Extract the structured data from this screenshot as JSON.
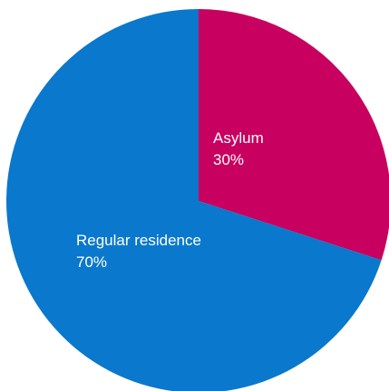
{
  "chart_data": {
    "type": "pie",
    "title": "",
    "slices": [
      {
        "label": "Asylum",
        "value": 30,
        "value_label": "30%",
        "color": "#C8005F"
      },
      {
        "label": "Regular residence",
        "value": 70,
        "value_label": "70%",
        "color": "#0A78CC"
      }
    ],
    "start_angle": "12 o'clock",
    "direction": "clockwise",
    "legend": "none"
  }
}
